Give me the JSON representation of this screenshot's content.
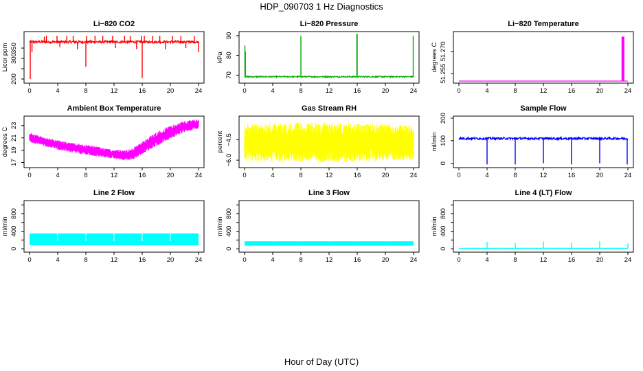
{
  "figure": {
    "title": "HDP_090703  1 Hz Diagnostics",
    "xlabel": "Hour of Day (UTC)"
  },
  "chart_data": [
    {
      "id": "co2",
      "type": "line",
      "title": "Li−820 CO2",
      "ylabel": "Licor ppm",
      "color": "#ff0000",
      "xlim": [
        0,
        24
      ],
      "ylim": [
        190,
        420
      ],
      "xticks": [
        0,
        4,
        8,
        12,
        16,
        20,
        24
      ],
      "yticks": [
        200,
        250,
        300,
        350
      ],
      "yticklabels": [
        "200",
        "",
        "300",
        "350"
      ],
      "series": [
        {
          "name": "",
          "baseline": 380,
          "noise": 6,
          "spikes": [
            [
              0.1,
              200
            ],
            [
              0.35,
              330
            ],
            [
              2.1,
              405
            ],
            [
              2.4,
              410
            ],
            [
              3.9,
              410
            ],
            [
              4.3,
              355
            ],
            [
              5.3,
              410
            ],
            [
              6.2,
              410
            ],
            [
              6.8,
              345
            ],
            [
              8.0,
              260
            ],
            [
              8.1,
              410
            ],
            [
              9.3,
              410
            ],
            [
              10.4,
              410
            ],
            [
              11.8,
              410
            ],
            [
              12.2,
              350
            ],
            [
              13.5,
              410
            ],
            [
              14.3,
              410
            ],
            [
              15.2,
              345
            ],
            [
              15.9,
              410
            ],
            [
              16.0,
              205
            ],
            [
              16.3,
              410
            ],
            [
              17.5,
              410
            ],
            [
              18.5,
              410
            ],
            [
              19.3,
              345
            ],
            [
              20.3,
              410
            ],
            [
              21.5,
              410
            ],
            [
              22.2,
              350
            ],
            [
              23.4,
              410
            ],
            [
              24.0,
              330
            ]
          ]
        }
      ]
    },
    {
      "id": "pressure",
      "type": "line",
      "title": "Li−820 Pressure",
      "ylabel": "kPa",
      "color": "#00aa00",
      "xlim": [
        0,
        24
      ],
      "ylim": [
        67,
        91
      ],
      "xticks": [
        0,
        4,
        8,
        12,
        16,
        20,
        24
      ],
      "yticks": [
        70,
        80,
        90
      ],
      "yticklabels": [
        "70",
        "80",
        "90"
      ],
      "series": [
        {
          "name": "",
          "baseline": 69.2,
          "noise": 0.3,
          "spikes": [
            [
              0.05,
              85
            ],
            [
              0.12,
              82
            ],
            [
              8.0,
              90
            ],
            [
              15.95,
              91
            ],
            [
              16.0,
              91
            ],
            [
              23.95,
              90
            ]
          ]
        }
      ]
    },
    {
      "id": "temp",
      "type": "line",
      "title": "Li−820 Temperature",
      "ylabel": "degrees C",
      "color": "#ff00ff",
      "xlim": [
        0,
        24
      ],
      "ylim": [
        51.25,
        51.282
      ],
      "xticks": [
        0,
        4,
        8,
        12,
        16,
        20,
        24
      ],
      "yticks": [
        51.255,
        51.27
      ],
      "yticklabels": [
        "51.255",
        "51.270"
      ],
      "series": [
        {
          "name": "",
          "baseline": 51.25,
          "block": [
            23.1,
            23.5,
            51.25,
            51.28
          ]
        }
      ]
    },
    {
      "id": "ambient",
      "type": "line",
      "title": "Ambient Box Temperature",
      "ylabel": "degrees C",
      "color": "#ff00ff",
      "xlim": [
        0,
        24
      ],
      "ylim": [
        16.5,
        24.2
      ],
      "xticks": [
        0,
        4,
        8,
        12,
        16,
        20,
        24
      ],
      "yticks": [
        17,
        19,
        21,
        23
      ],
      "yticklabels": [
        "17",
        "19",
        "21",
        "23"
      ],
      "series": [
        {
          "name": "",
          "band": [
            [
              0,
              20.3,
              21.9
            ],
            [
              2,
              19.7,
              21.1
            ],
            [
              4,
              19.1,
              20.6
            ],
            [
              6,
              18.6,
              20.2
            ],
            [
              8,
              18.2,
              19.9
            ],
            [
              10,
              17.9,
              19.5
            ],
            [
              12,
              17.6,
              19.0
            ],
            [
              14,
              17.3,
              19.1
            ],
            [
              15,
              17.6,
              19.6
            ],
            [
              16,
              18.4,
              20.5
            ],
            [
              18,
              19.6,
              21.9
            ],
            [
              20,
              20.9,
              23.0
            ],
            [
              22,
              21.9,
              23.7
            ],
            [
              24,
              22.5,
              24.1
            ]
          ]
        }
      ]
    },
    {
      "id": "rh",
      "type": "line",
      "title": "Gas Stream RH",
      "ylabel": "percent",
      "color": "#ffff00",
      "xlim": [
        0,
        24
      ],
      "ylim": [
        -6.4,
        -2.9
      ],
      "xticks": [
        0,
        4,
        8,
        12,
        16,
        20,
        24
      ],
      "yticks": [
        -6.0,
        -4.5
      ],
      "yticklabels": [
        "−6.0",
        "−4.5"
      ],
      "series": [
        {
          "name": "",
          "band": [
            [
              0,
              -6.1,
              -3.3
            ],
            [
              12,
              -6.2,
              -3.2
            ],
            [
              24,
              -6.0,
              -3.4
            ]
          ]
        }
      ]
    },
    {
      "id": "sample",
      "type": "line",
      "title": "Sample Flow",
      "ylabel": "ml/min",
      "color": "#0000ff",
      "xlim": [
        0,
        24
      ],
      "ylim": [
        -10,
        200
      ],
      "xticks": [
        0,
        4,
        8,
        12,
        16,
        20,
        24
      ],
      "yticks": [
        0,
        100,
        200
      ],
      "yticklabels": [
        "0",
        "100",
        "200"
      ],
      "series": [
        {
          "name": "",
          "baseline": 110,
          "noise": 5,
          "spikes": [
            [
              4.0,
              -5
            ],
            [
              8.0,
              -5
            ],
            [
              12.0,
              0
            ],
            [
              16.0,
              -5
            ],
            [
              20.0,
              0
            ],
            [
              23.9,
              -5
            ]
          ]
        }
      ]
    },
    {
      "id": "line2",
      "type": "area",
      "title": "Line 2 Flow",
      "ylabel": "ml/min",
      "color": "#00ffff",
      "xlim": [
        0,
        24
      ],
      "ylim": [
        -30,
        1050
      ],
      "xticks": [
        0,
        4,
        8,
        12,
        16,
        20,
        24
      ],
      "yticks": [
        0,
        200,
        400,
        600,
        800,
        1000
      ],
      "yticklabels": [
        "0",
        "",
        "400",
        "",
        "800",
        ""
      ],
      "series": [
        {
          "name": "",
          "lo": 80,
          "hi": 350,
          "gaps": [
            4,
            8,
            12,
            16,
            20
          ]
        }
      ]
    },
    {
      "id": "line3",
      "type": "area",
      "title": "Line 3 Flow",
      "ylabel": "ml/min",
      "color": "#00ffff",
      "xlim": [
        0,
        24
      ],
      "ylim": [
        -30,
        1050
      ],
      "xticks": [
        0,
        4,
        8,
        12,
        16,
        20,
        24
      ],
      "yticks": [
        0,
        200,
        400,
        600,
        800,
        1000
      ],
      "yticklabels": [
        "0",
        "",
        "400",
        "",
        "800",
        ""
      ],
      "series": [
        {
          "name": "",
          "lo": 70,
          "hi": 170,
          "gaps": [
            4,
            8,
            12,
            16,
            20
          ]
        }
      ]
    },
    {
      "id": "line4",
      "type": "line",
      "title": "Line 4 (LT) Flow",
      "ylabel": "ml/min",
      "color": "#00ffff",
      "xlim": [
        0,
        24
      ],
      "ylim": [
        -30,
        1050
      ],
      "xticks": [
        0,
        4,
        8,
        12,
        16,
        20,
        24
      ],
      "yticks": [
        0,
        200,
        400,
        600,
        800,
        1000
      ],
      "yticklabels": [
        "0",
        "",
        "400",
        "",
        "800",
        ""
      ],
      "series": [
        {
          "name": "",
          "baseline": 10,
          "noise": 4,
          "spikes": [
            [
              4.0,
              160
            ],
            [
              8.0,
              130
            ],
            [
              12.0,
              165
            ],
            [
              16.0,
              140
            ],
            [
              20.0,
              170
            ],
            [
              24.0,
              120
            ]
          ]
        }
      ]
    }
  ]
}
